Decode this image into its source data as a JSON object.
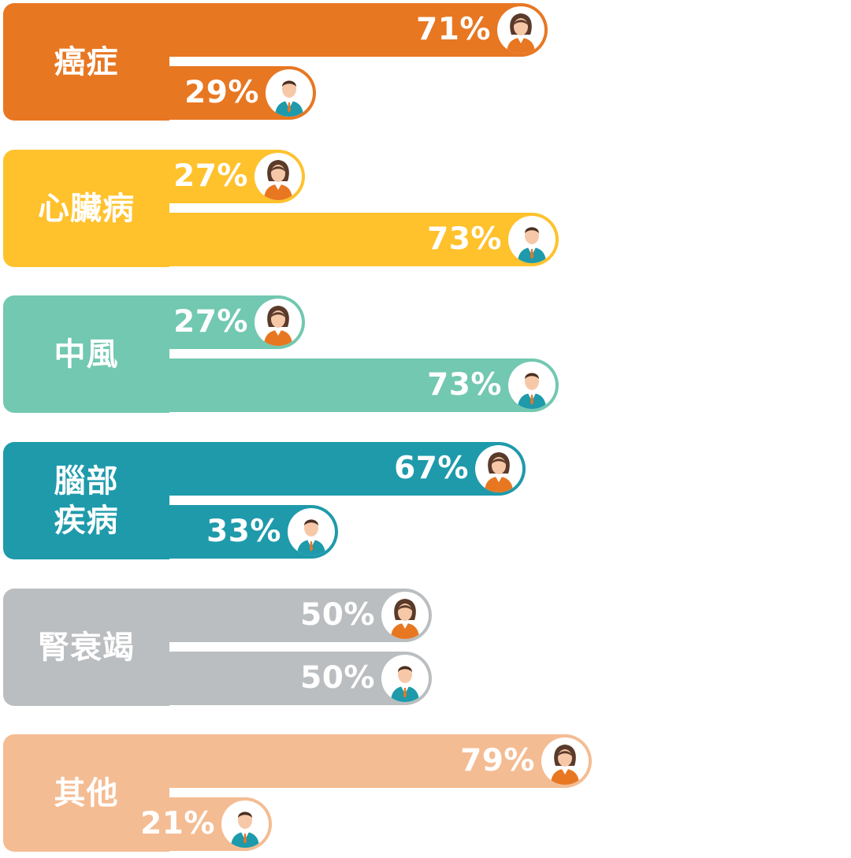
{
  "chart_data": {
    "type": "bar",
    "orientation": "horizontal",
    "categories": [
      "癌症",
      "心臟病",
      "中風",
      "腦部\n疾病",
      "腎衰竭",
      "其他"
    ],
    "category_colors": [
      "#E87722",
      "#FFC22D",
      "#72C8B0",
      "#1E9AAB",
      "#BBBEC0",
      "#F4BC93"
    ],
    "series": [
      {
        "icon": "female-avatar-icon",
        "values": [
          71,
          27,
          27,
          67,
          50,
          79
        ]
      },
      {
        "icon": "male-avatar-icon",
        "values": [
          29,
          73,
          73,
          33,
          50,
          21
        ]
      }
    ],
    "labels": [
      [
        "71%",
        "29%"
      ],
      [
        "27%",
        "73%"
      ],
      [
        "27%",
        "73%"
      ],
      [
        "67%",
        "33%"
      ],
      [
        "50%",
        "50%"
      ],
      [
        "79%",
        "21%"
      ]
    ],
    "xlim": [
      0,
      100
    ]
  }
}
